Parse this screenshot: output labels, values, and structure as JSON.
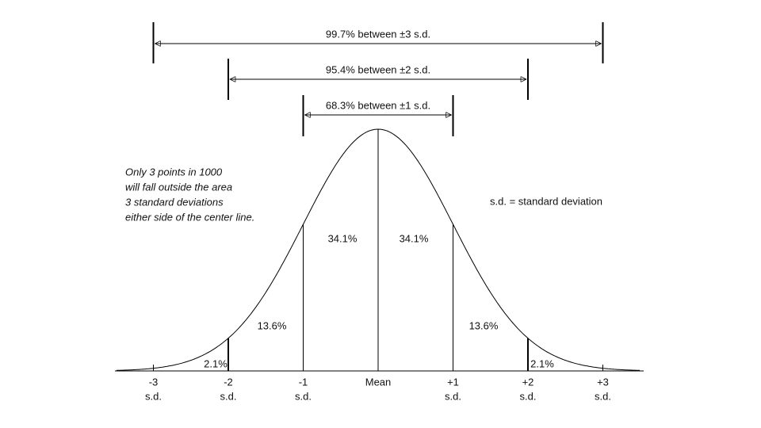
{
  "ranges": [
    {
      "label": "99.7% between ±3 s.d."
    },
    {
      "label": "95.4% between ±2 s.d."
    },
    {
      "label": "68.3% between ±1 s.d."
    }
  ],
  "note": [
    "Only 3 points in 1000",
    "will fall outside the area",
    "3 standard deviations",
    "either side of the center line."
  ],
  "legend": "s.d. = standard deviation",
  "regions": [
    "34.1%",
    "34.1%",
    "13.6%",
    "13.6%",
    "2.1%",
    "2.1%"
  ],
  "axis_labels": [
    {
      "top": "-3",
      "bottom": "s.d."
    },
    {
      "top": "-2",
      "bottom": "s.d."
    },
    {
      "top": "-1",
      "bottom": "s.d."
    },
    {
      "top": "Mean"
    },
    {
      "top": "+1",
      "bottom": "s.d."
    },
    {
      "top": "+2",
      "bottom": "s.d."
    },
    {
      "top": "+3",
      "bottom": "s.d."
    }
  ]
}
